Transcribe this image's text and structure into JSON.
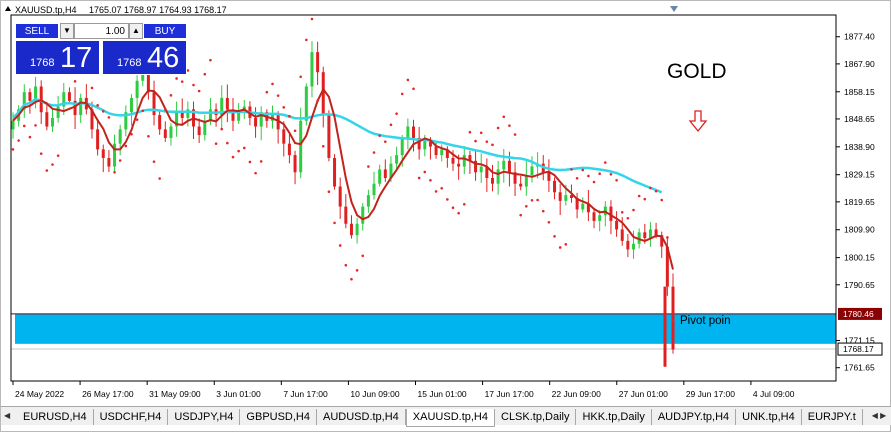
{
  "window": {
    "title": "XAUUSD.tp,H4",
    "ohlc": "1765.07 1768.97 1764.93 1768.17"
  },
  "trade_panel": {
    "sell_label": "SELL",
    "buy_label": "BUY",
    "lot_value": "1.00",
    "sell_price_small": "1768",
    "sell_price_big": "17",
    "buy_price_small": "1768",
    "buy_price_big": "46"
  },
  "annotations": {
    "gold_label": "GOLD",
    "pivot_label": "Pivot poin",
    "arrow": "down-arrow-icon"
  },
  "price_axis": {
    "ticks": [
      "1877.40",
      "1867.90",
      "1858.15",
      "1848.65",
      "1838.90",
      "1829.15",
      "1819.65",
      "1809.90",
      "1800.15",
      "1790.65",
      "1771.15",
      "1761.65"
    ],
    "pivot_badge": "1780.46",
    "current_badge": "1768.17"
  },
  "time_axis": {
    "ticks": [
      "24 May 2022",
      "26 May 17:00",
      "31 May 09:00",
      "3 Jun 01:00",
      "7 Jun 17:00",
      "10 Jun 09:00",
      "15 Jun 01:00",
      "17 Jun 17:00",
      "22 Jun 09:00",
      "27 Jun 01:00",
      "29 Jun 17:00",
      "4 Jul 09:00"
    ]
  },
  "tabs": [
    {
      "label": "EURUSD,H4",
      "active": false
    },
    {
      "label": "USDCHF,H4",
      "active": false
    },
    {
      "label": "USDJPY,H4",
      "active": false
    },
    {
      "label": "GBPUSD,H4",
      "active": false
    },
    {
      "label": "AUDUSD.tp,H4",
      "active": false
    },
    {
      "label": "XAUUSD.tp,H4",
      "active": true
    },
    {
      "label": "CLSK.tp,Daily",
      "active": false
    },
    {
      "label": "HKK.tp,Daily",
      "active": false
    },
    {
      "label": "AUDJPY.tp,H4",
      "active": false
    },
    {
      "label": "UNK.tp,H4",
      "active": false
    },
    {
      "label": "EURJPY.t",
      "active": false
    }
  ],
  "colors": {
    "bull_candle": "#2ecc40",
    "bear_candle": "#e02020",
    "ma_fast": "#c0241c",
    "ma_slow": "#33d6e8",
    "sar_dots": "#e8262a",
    "zone": "#00b4f0",
    "panel_blue": "#1a29c9"
  },
  "chart_data": {
    "type": "candlestick",
    "symbol": "XAUUSD.tp",
    "timeframe": "H4",
    "ylim": [
      1757,
      1885
    ],
    "close_series": [
      1848,
      1852,
      1858,
      1855,
      1860,
      1851,
      1846,
      1849,
      1853,
      1858,
      1855,
      1850,
      1856,
      1852,
      1845,
      1838,
      1835,
      1832,
      1840,
      1845,
      1851,
      1856,
      1862,
      1866,
      1858,
      1850,
      1845,
      1842,
      1846,
      1851,
      1849,
      1852,
      1846,
      1843,
      1848,
      1852,
      1850,
      1856,
      1852,
      1848,
      1851,
      1853,
      1849,
      1846,
      1851,
      1848,
      1850,
      1845,
      1840,
      1836,
      1830,
      1848,
      1860,
      1872,
      1865,
      1850,
      1835,
      1825,
      1818,
      1812,
      1808,
      1812,
      1818,
      1822,
      1826,
      1831,
      1828,
      1833,
      1836,
      1842,
      1846,
      1842,
      1838,
      1841,
      1839,
      1836,
      1838,
      1835,
      1833,
      1832,
      1836,
      1834,
      1830,
      1832,
      1828,
      1826,
      1831,
      1834,
      1830,
      1826,
      1825,
      1829,
      1832,
      1833,
      1830,
      1827,
      1823,
      1820,
      1822,
      1821,
      1817,
      1819,
      1816,
      1813,
      1815,
      1818,
      1813,
      1810,
      1806,
      1803,
      1805,
      1809,
      1807,
      1810,
      1808,
      1804,
      1790,
      1768
    ],
    "pivot_level": 1780.46,
    "current_price": 1768.17
  }
}
